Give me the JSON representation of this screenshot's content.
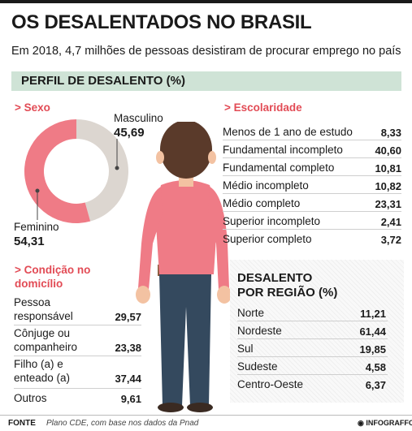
{
  "header": {
    "title": "OS DESALENTADOS NO BRASIL",
    "subtitle": "Em 2018,  4,7 milhões de pessoas desistiram  de procurar emprego no país",
    "band_label": "PERFIL DE DESALENTO (%)"
  },
  "colors": {
    "feminino": "#ef7b86",
    "masculino": "#dcd6d0",
    "accent": "#e24b55",
    "band": "#cfe3d6"
  },
  "sexo": {
    "heading": "> Sexo"
  },
  "escolaridade": {
    "heading": "> Escolaridade"
  },
  "condicao": {
    "heading_1": "> Condição no",
    "heading_2": "domicílio"
  },
  "regiao": {
    "heading_1": "DESALENTO",
    "heading_2": "POR REGIÃO (%)"
  },
  "chart_data": [
    {
      "type": "pie",
      "categories": [
        "Masculino",
        "Feminino"
      ],
      "values": [
        45.69,
        54.31
      ],
      "labels": [
        "45,69",
        "54,31"
      ]
    },
    {
      "type": "table",
      "categories": [
        "Menos de 1 ano de estudo",
        "Fundamental incompleto",
        "Fundamental completo",
        "Médio incompleto",
        "Médio completo",
        "Superior incompleto",
        "Superior completo"
      ],
      "values": [
        8.33,
        40.6,
        10.81,
        10.82,
        23.31,
        2.41,
        3.72
      ],
      "labels": [
        "8,33",
        "40,60",
        "10,81",
        "10,82",
        "23,31",
        "2,41",
        "3,72"
      ]
    },
    {
      "type": "table",
      "categories": [
        [
          "Pessoa",
          "responsável"
        ],
        [
          "Cônjuge ou",
          "companheiro"
        ],
        [
          "Filho (a) e",
          "enteado (a)"
        ],
        [
          "Outros"
        ]
      ],
      "values": [
        29.57,
        23.38,
        37.44,
        9.61
      ],
      "labels": [
        "29,57",
        "23,38",
        "37,44",
        "9,61"
      ]
    },
    {
      "type": "table",
      "categories": [
        "Norte",
        "Nordeste",
        "Sul",
        "Sudeste",
        "Centro-Oeste"
      ],
      "values": [
        11.21,
        61.44,
        19.85,
        4.58,
        6.37
      ],
      "labels": [
        "11,21",
        "61,44",
        "19,85",
        "4,58",
        "6,37"
      ]
    }
  ],
  "footer": {
    "fonte_label": "FONTE",
    "fonte_text": "Plano CDE, com base nos dados da Pnad",
    "logo": "◉ INFOGRAFFO"
  }
}
